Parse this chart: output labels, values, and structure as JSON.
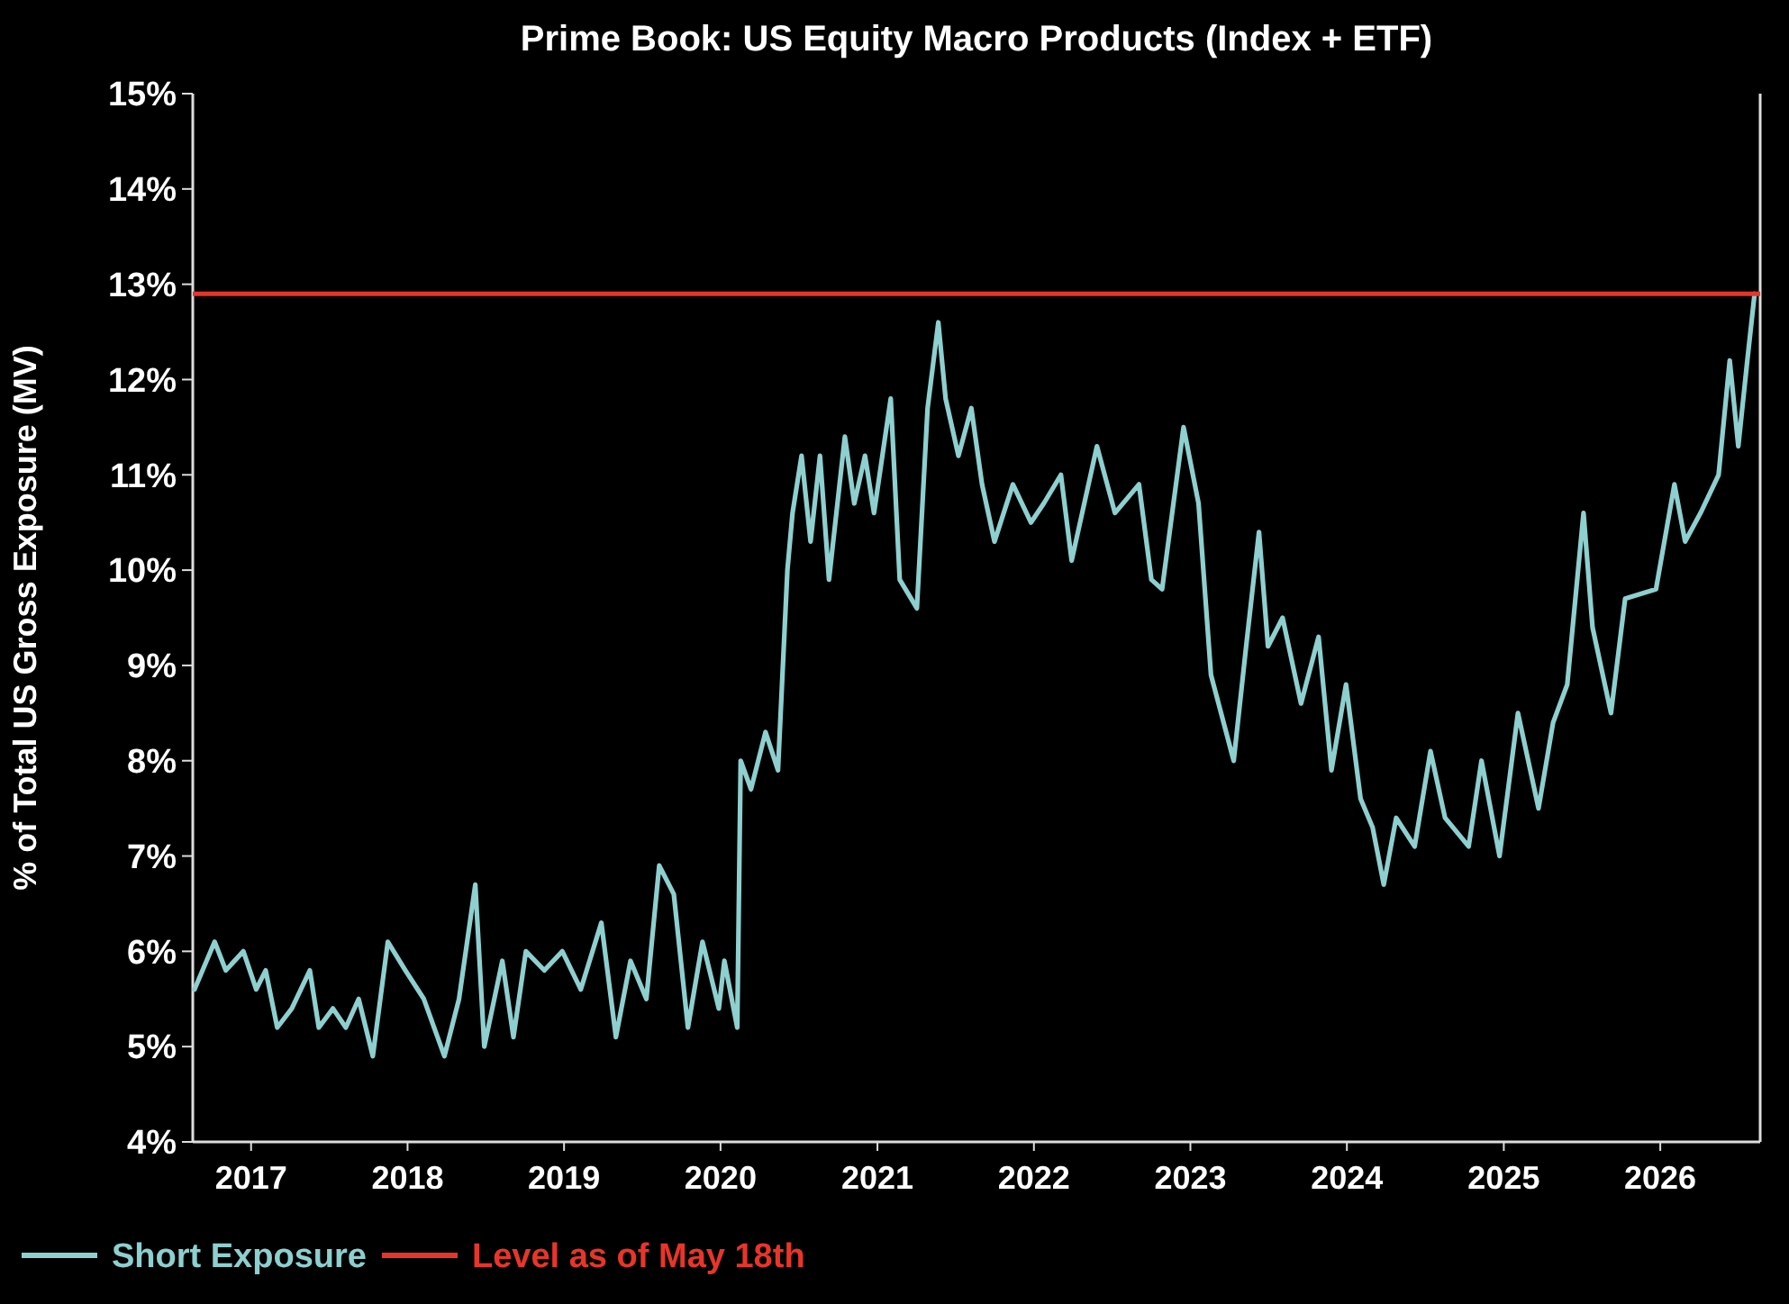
{
  "chart_data": {
    "type": "line",
    "title": "Prime Book: US Equity Macro Products (Index + ETF)",
    "ylabel": "% of Total US Gross Exposure (MV)",
    "xlim": [
      "2016-08-18",
      "2026-08-22"
    ],
    "xticks": [
      {
        "value": "2017-01-01",
        "label": "2017"
      },
      {
        "value": "2018-01-01",
        "label": "2018"
      },
      {
        "value": "2019-01-01",
        "label": "2019"
      },
      {
        "value": "2020-01-01",
        "label": "2020"
      },
      {
        "value": "2021-01-01",
        "label": "2021"
      },
      {
        "value": "2022-01-01",
        "label": "2022"
      },
      {
        "value": "2023-01-01",
        "label": "2023"
      },
      {
        "value": "2024-01-01",
        "label": "2024"
      },
      {
        "value": "2025-01-01",
        "label": "2025"
      },
      {
        "value": "2026-01-01",
        "label": "2026"
      }
    ],
    "ylim": [
      4,
      15
    ],
    "yticks": [
      {
        "value": 4,
        "label": "4%"
      },
      {
        "value": 5,
        "label": "5%"
      },
      {
        "value": 6,
        "label": "6%"
      },
      {
        "value": 7,
        "label": "7%"
      },
      {
        "value": 8,
        "label": "8%"
      },
      {
        "value": 9,
        "label": "9%"
      },
      {
        "value": 10,
        "label": "10%"
      },
      {
        "value": 11,
        "label": "11%"
      },
      {
        "value": 12,
        "label": "12%"
      },
      {
        "value": 13,
        "label": "13%"
      },
      {
        "value": 14,
        "label": "14%"
      },
      {
        "value": 15,
        "label": "15%"
      }
    ],
    "grid": false,
    "legend": "bottom left",
    "marker": "none",
    "line_style": "solid",
    "ref_lines": [
      {
        "axis": "y",
        "value": 12.9,
        "label": "Level as of May 18th",
        "color": "#e8352a",
        "line_style": "solid"
      }
    ],
    "series": [
      {
        "name": "Short Exposure",
        "color": "#8ecfcf",
        "x": [
          "2016-08-22",
          "2016-10-08",
          "2016-11-03",
          "2016-12-14",
          "2017-01-13",
          "2017-02-04",
          "2017-03-03",
          "2017-04-06",
          "2017-05-18",
          "2017-06-08",
          "2017-07-11",
          "2017-08-10",
          "2017-09-09",
          "2017-10-12",
          "2017-11-16",
          "2017-12-27",
          "2018-02-08",
          "2018-03-28",
          "2018-05-01",
          "2018-06-08",
          "2018-06-29",
          "2018-08-10",
          "2018-09-05",
          "2018-10-04",
          "2018-11-16",
          "2018-12-28",
          "2019-02-09",
          "2019-03-29",
          "2019-05-02",
          "2019-06-05",
          "2019-07-12",
          "2019-08-11",
          "2019-09-14",
          "2019-10-17",
          "2019-11-20",
          "2019-12-28",
          "2020-01-10",
          "2020-02-09",
          "2020-02-17",
          "2020-03-12",
          "2020-04-15",
          "2020-05-14",
          "2020-06-05",
          "2020-06-17",
          "2020-07-08",
          "2020-07-29",
          "2020-08-20",
          "2020-09-10",
          "2020-10-17",
          "2020-11-08",
          "2020-12-03",
          "2020-12-24",
          "2021-02-01",
          "2021-02-22",
          "2021-04-03",
          "2021-04-28",
          "2021-05-23",
          "2021-06-09",
          "2021-07-09",
          "2021-08-08",
          "2021-09-02",
          "2021-10-01",
          "2021-11-13",
          "2021-12-25",
          "2022-01-24",
          "2022-03-05",
          "2022-03-30",
          "2022-05-28",
          "2022-07-09",
          "2022-09-03",
          "2022-10-02",
          "2022-10-27",
          "2022-12-16",
          "2023-01-20",
          "2023-02-18",
          "2023-04-12",
          "2023-05-11",
          "2023-06-10",
          "2023-07-01",
          "2023-08-04",
          "2023-09-16",
          "2023-10-27",
          "2023-11-26",
          "2023-12-30",
          "2024-02-02",
          "2024-03-01",
          "2024-03-27",
          "2024-04-25",
          "2024-06-07",
          "2024-07-14",
          "2024-08-17",
          "2024-10-11",
          "2024-11-10",
          "2024-12-22",
          "2025-02-03",
          "2025-03-23",
          "2025-04-26",
          "2025-05-29",
          "2025-07-06",
          "2025-07-27",
          "2025-09-08",
          "2025-10-11",
          "2025-12-22",
          "2026-02-03",
          "2026-02-28",
          "2026-04-05",
          "2026-05-17",
          "2026-06-12",
          "2026-07-02",
          "2026-07-23",
          "2026-08-09"
        ],
        "values": [
          5.6,
          6.1,
          5.8,
          6.0,
          5.6,
          5.8,
          5.2,
          5.4,
          5.8,
          5.2,
          5.4,
          5.2,
          5.5,
          4.9,
          6.1,
          5.8,
          5.5,
          4.9,
          5.5,
          6.7,
          5.0,
          5.9,
          5.1,
          6.0,
          5.8,
          6.0,
          5.6,
          6.3,
          5.1,
          5.9,
          5.5,
          6.9,
          6.6,
          5.2,
          6.1,
          5.4,
          5.9,
          5.2,
          8.0,
          7.7,
          8.3,
          7.9,
          10.0,
          10.6,
          11.2,
          10.3,
          11.2,
          9.9,
          11.4,
          10.7,
          11.2,
          10.6,
          11.8,
          9.9,
          9.6,
          11.7,
          12.6,
          11.8,
          11.2,
          11.7,
          10.9,
          10.3,
          10.9,
          10.5,
          10.7,
          11.0,
          10.1,
          11.3,
          10.6,
          10.9,
          9.9,
          9.8,
          11.5,
          10.7,
          8.9,
          8.0,
          9.2,
          10.4,
          9.2,
          9.5,
          8.6,
          9.3,
          7.9,
          8.8,
          7.6,
          7.3,
          6.7,
          7.4,
          7.1,
          8.1,
          7.4,
          7.1,
          8.0,
          7.0,
          8.5,
          7.5,
          8.4,
          8.8,
          10.6,
          9.4,
          8.5,
          9.7,
          9.8,
          10.9,
          10.3,
          10.6,
          11.0,
          12.2,
          11.3,
          12.2,
          12.9
        ]
      }
    ]
  }
}
